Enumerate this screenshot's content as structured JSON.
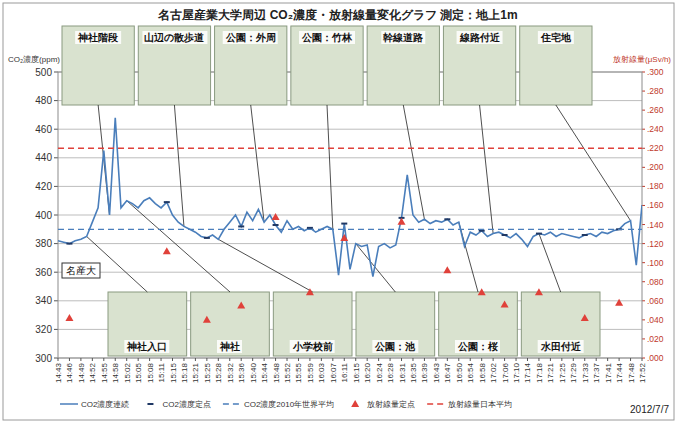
{
  "chart_data": {
    "type": "line",
    "title": "名古屋産業大学周辺 CO₂濃度・放射線量変化グラフ 測定：地上1m",
    "y_label": "CO₂濃度(ppm)",
    "y2_label": "放射線量(μSv/h)",
    "date": "2012/7/7",
    "categories": [
      "14:43",
      null,
      "14:46",
      null,
      "14:49",
      null,
      "14:52",
      null,
      "14:55",
      null,
      "14:58",
      null,
      "15:02",
      null,
      "15:05",
      null,
      "15:08",
      null,
      "15:11",
      null,
      "15:15",
      null,
      "15:18",
      null,
      "15:21",
      null,
      "15:25",
      null,
      "15:28",
      null,
      "15:32",
      null,
      "15:36",
      null,
      "15:40",
      null,
      "15:44",
      null,
      "15:48",
      null,
      "15:52",
      null,
      "15:55",
      null,
      "15:59",
      null,
      "16:03",
      null,
      "16:07",
      null,
      "16:11",
      null,
      "16:15",
      null,
      "16:20",
      null,
      "16:24",
      null,
      "16:28",
      null,
      "16:31",
      null,
      "16:35",
      null,
      "16:39",
      null,
      "16:43",
      null,
      "16:47",
      null,
      "16:50",
      null,
      "16:54",
      null,
      "16:58",
      null,
      "17:02",
      null,
      "17:06",
      null,
      "17:10",
      null,
      "17:14",
      null,
      "17:18",
      null,
      "17:21",
      null,
      "17:25",
      null,
      "17:29",
      null,
      "17:33",
      null,
      "17:37",
      null,
      "17:41",
      null,
      "17:44",
      null,
      "17:48",
      null,
      "17:52"
    ],
    "series": [
      {
        "name": "CO2濃度連続",
        "type": "line",
        "line_style": "solid",
        "color": "#4a7ebb",
        "values": [
          382,
          381,
          380,
          382,
          383,
          385,
          395,
          405,
          445,
          400,
          468,
          405,
          410,
          408,
          405,
          410,
          412,
          408,
          405,
          409,
          400,
          395,
          392,
          390,
          388,
          385,
          384,
          386,
          383,
          390,
          395,
          400,
          392,
          402,
          396,
          404,
          395,
          400,
          393,
          388,
          396,
          390,
          392,
          389,
          391,
          388,
          390,
          392,
          390,
          358,
          394,
          362,
          380,
          378,
          379,
          357,
          378,
          380,
          377,
          379,
          398,
          428,
          400,
          395,
          397,
          394,
          396,
          395,
          397,
          393,
          395,
          378,
          388,
          386,
          389,
          385,
          387,
          388,
          386,
          384,
          387,
          383,
          378,
          385,
          387,
          386,
          388,
          385,
          387,
          386,
          385,
          384,
          386,
          387,
          385,
          388,
          387,
          389,
          390,
          394,
          396,
          365,
          407
        ]
      },
      {
        "name": "CO2濃度定点",
        "type": "scatter",
        "marker": "dash",
        "color": "#1f3864",
        "values": [
          null,
          null,
          380,
          null,
          null,
          null,
          null,
          null,
          null,
          null,
          null,
          null,
          null,
          null,
          null,
          null,
          null,
          null,
          null,
          409,
          null,
          null,
          null,
          null,
          null,
          null,
          384,
          null,
          null,
          null,
          null,
          null,
          392,
          null,
          null,
          null,
          null,
          null,
          393,
          null,
          null,
          null,
          null,
          null,
          391,
          null,
          null,
          null,
          null,
          null,
          394,
          null,
          null,
          null,
          null,
          null,
          null,
          null,
          null,
          null,
          398,
          null,
          null,
          null,
          null,
          null,
          null,
          null,
          397,
          null,
          null,
          null,
          null,
          null,
          389,
          null,
          null,
          null,
          386,
          null,
          null,
          null,
          null,
          null,
          387,
          null,
          null,
          null,
          null,
          null,
          null,
          null,
          386,
          null,
          null,
          null,
          null,
          null,
          390,
          null,
          null,
          null,
          null
        ]
      },
      {
        "name": "CO2濃度2010年世界平均",
        "type": "line",
        "line_style": "dashed",
        "color": "#4a7ebb",
        "values": [
          390,
          390,
          390,
          390,
          390,
          390,
          390,
          390,
          390,
          390,
          390,
          390,
          390,
          390,
          390,
          390,
          390,
          390,
          390,
          390,
          390,
          390,
          390,
          390,
          390,
          390,
          390,
          390,
          390,
          390,
          390,
          390,
          390,
          390,
          390,
          390,
          390,
          390,
          390,
          390,
          390,
          390,
          390,
          390,
          390,
          390,
          390,
          390,
          390,
          390,
          390,
          390,
          390,
          390,
          390,
          390,
          390,
          390,
          390,
          390,
          390,
          390,
          390,
          390,
          390,
          390,
          390,
          390,
          390,
          390,
          390,
          390,
          390,
          390,
          390,
          390,
          390,
          390,
          390,
          390,
          390,
          390,
          390,
          390,
          390,
          390,
          390,
          390,
          390,
          390,
          390,
          390,
          390,
          390,
          390,
          390,
          390,
          390,
          390,
          390,
          390,
          390,
          390
        ]
      },
      {
        "name": "放射線量定点",
        "type": "scatter",
        "marker": "triangle",
        "color": "#e0413a",
        "axis": "y2",
        "values": [
          null,
          null,
          0.042,
          null,
          null,
          null,
          null,
          null,
          null,
          null,
          null,
          null,
          null,
          null,
          null,
          null,
          null,
          null,
          null,
          0.112,
          null,
          null,
          null,
          null,
          null,
          null,
          0.04,
          null,
          null,
          null,
          null,
          null,
          0.055,
          null,
          null,
          null,
          null,
          null,
          0.148,
          null,
          null,
          null,
          null,
          null,
          0.069,
          null,
          null,
          null,
          null,
          null,
          0.126,
          null,
          null,
          null,
          null,
          null,
          null,
          null,
          null,
          null,
          0.143,
          null,
          null,
          null,
          null,
          null,
          null,
          null,
          0.092,
          null,
          null,
          null,
          null,
          null,
          0.069,
          null,
          null,
          null,
          0.056,
          null,
          null,
          null,
          null,
          null,
          0.069,
          null,
          null,
          null,
          null,
          null,
          null,
          null,
          0.042,
          null,
          null,
          null,
          null,
          null,
          0.058,
          null,
          null,
          null,
          null
        ]
      },
      {
        "name": "放射線量日本平均",
        "type": "line",
        "line_style": "dashed",
        "color": "#e0413a",
        "axis": "y2",
        "values": [
          0.22,
          0.22,
          0.22,
          0.22,
          0.22,
          0.22,
          0.22,
          0.22,
          0.22,
          0.22,
          0.22,
          0.22,
          0.22,
          0.22,
          0.22,
          0.22,
          0.22,
          0.22,
          0.22,
          0.22,
          0.22,
          0.22,
          0.22,
          0.22,
          0.22,
          0.22,
          0.22,
          0.22,
          0.22,
          0.22,
          0.22,
          0.22,
          0.22,
          0.22,
          0.22,
          0.22,
          0.22,
          0.22,
          0.22,
          0.22,
          0.22,
          0.22,
          0.22,
          0.22,
          0.22,
          0.22,
          0.22,
          0.22,
          0.22,
          0.22,
          0.22,
          0.22,
          0.22,
          0.22,
          0.22,
          0.22,
          0.22,
          0.22,
          0.22,
          0.22,
          0.22,
          0.22,
          0.22,
          0.22,
          0.22,
          0.22,
          0.22,
          0.22,
          0.22,
          0.22,
          0.22,
          0.22,
          0.22,
          0.22,
          0.22,
          0.22,
          0.22,
          0.22,
          0.22,
          0.22,
          0.22,
          0.22,
          0.22,
          0.22,
          0.22,
          0.22,
          0.22,
          0.22,
          0.22,
          0.22,
          0.22,
          0.22,
          0.22,
          0.22,
          0.22,
          0.22,
          0.22,
          0.22,
          0.22,
          0.22,
          0.22,
          0.22,
          0.22
        ]
      }
    ],
    "ylim": [
      300,
      500
    ],
    "yticks": [
      300,
      320,
      340,
      360,
      380,
      400,
      420,
      440,
      460,
      480,
      500
    ],
    "y2lim": [
      0,
      0.3
    ],
    "y2ticks": [
      {
        "value": 0,
        "label": ".000"
      },
      {
        "value": 0.02,
        "label": ".020"
      },
      {
        "value": 0.04,
        "label": ".040"
      },
      {
        "value": 0.06,
        "label": ".060"
      },
      {
        "value": 0.08,
        "label": ".080"
      },
      {
        "value": 0.1,
        "label": ".100"
      },
      {
        "value": 0.12,
        "label": ".120"
      },
      {
        "value": 0.14,
        "label": ".140"
      },
      {
        "value": 0.16,
        "label": ".160"
      },
      {
        "value": 0.18,
        "label": ".180"
      },
      {
        "value": 0.2,
        "label": ".200"
      },
      {
        "value": 0.22,
        "label": ".220"
      },
      {
        "value": 0.24,
        "label": ".240"
      },
      {
        "value": 0.26,
        "label": ".260"
      },
      {
        "value": 0.28,
        "label": ".280"
      },
      {
        "value": 0.3,
        "label": ".300"
      }
    ],
    "grid": true,
    "legend": "bottom",
    "annotations_top": [
      {
        "text": "神社階段",
        "index": 9
      },
      {
        "text": "山辺の散歩道",
        "index": 22
      },
      {
        "text": "公園：外周",
        "index": 36
      },
      {
        "text": "公園：竹林",
        "index": 48
      },
      {
        "text": "幹線道路",
        "index": 64
      },
      {
        "text": "線路付近",
        "index": 76
      },
      {
        "text": "住宅地",
        "index": 100
      }
    ],
    "annotations_bottom": [
      {
        "text": "神社入口",
        "index": 5
      },
      {
        "text": "神社",
        "index": 12
      },
      {
        "text": "小学校前",
        "index": 28
      },
      {
        "text": "公園：池",
        "index": 52
      },
      {
        "text": "公園：桜",
        "index": 70
      },
      {
        "text": "水田付近",
        "index": 84
      }
    ],
    "place_label": {
      "text": "名産大",
      "index": 0
    }
  }
}
